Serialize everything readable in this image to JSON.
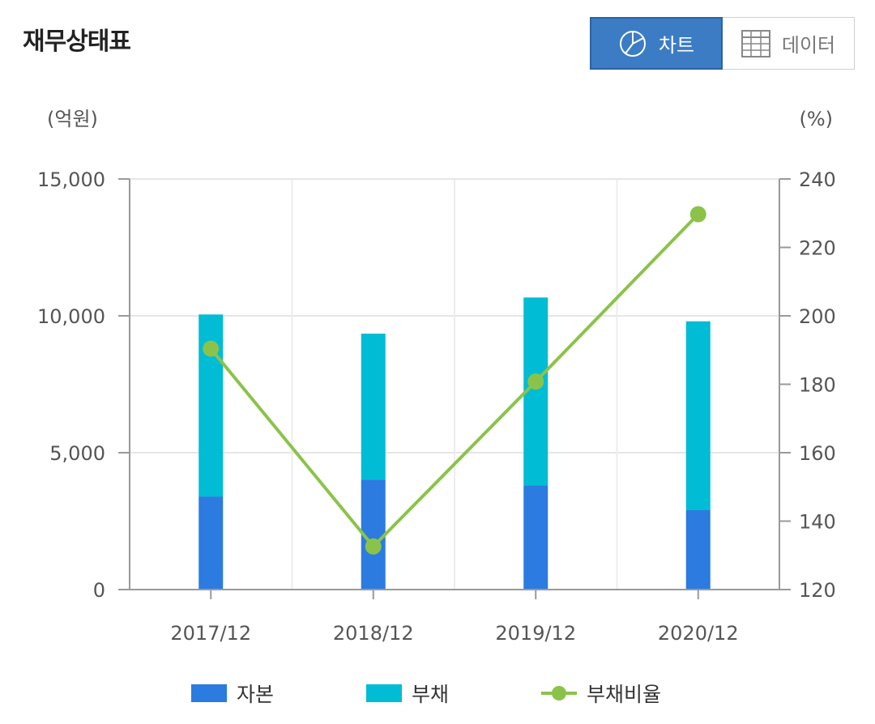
{
  "header": {
    "title": "재무상태표",
    "tabs": [
      {
        "label": "차트",
        "icon": "pie-chart-icon",
        "active": true
      },
      {
        "label": "데이터",
        "icon": "table-grid-icon",
        "active": false
      }
    ]
  },
  "colors": {
    "capital": "#2b7be0",
    "liabilities": "#00bcd4",
    "ratio": "#8bc34a",
    "active_tab": "#3b7cc4"
  },
  "chart_data": {
    "type": "bar",
    "stacked": true,
    "categories": [
      "2017/12",
      "2018/12",
      "2019/12",
      "2020/12"
    ],
    "y_left": {
      "unit_label": "(억원)",
      "range": [
        0,
        15000
      ],
      "ticks": [
        "15,000",
        "10,000",
        "5,000",
        "0"
      ],
      "tick_values": [
        15000,
        10000,
        5000,
        0
      ]
    },
    "y_right": {
      "unit_label": "(%)",
      "range": [
        120,
        240
      ],
      "ticks": [
        "240",
        "220",
        "200",
        "180",
        "160",
        "140",
        "120"
      ],
      "tick_values": [
        240,
        220,
        200,
        180,
        160,
        140,
        120
      ]
    },
    "series": [
      {
        "name": "자본",
        "type": "bar",
        "axis": "left",
        "values": [
          3400,
          4020,
          3800,
          2900
        ]
      },
      {
        "name": "부채",
        "type": "bar",
        "axis": "left",
        "values": [
          6650,
          5330,
          6870,
          6900
        ]
      },
      {
        "name": "부채비율",
        "type": "line",
        "axis": "right",
        "values": [
          190.4,
          132.6,
          180.8,
          229.7
        ]
      }
    ],
    "grid": true,
    "legend": "bottom"
  }
}
